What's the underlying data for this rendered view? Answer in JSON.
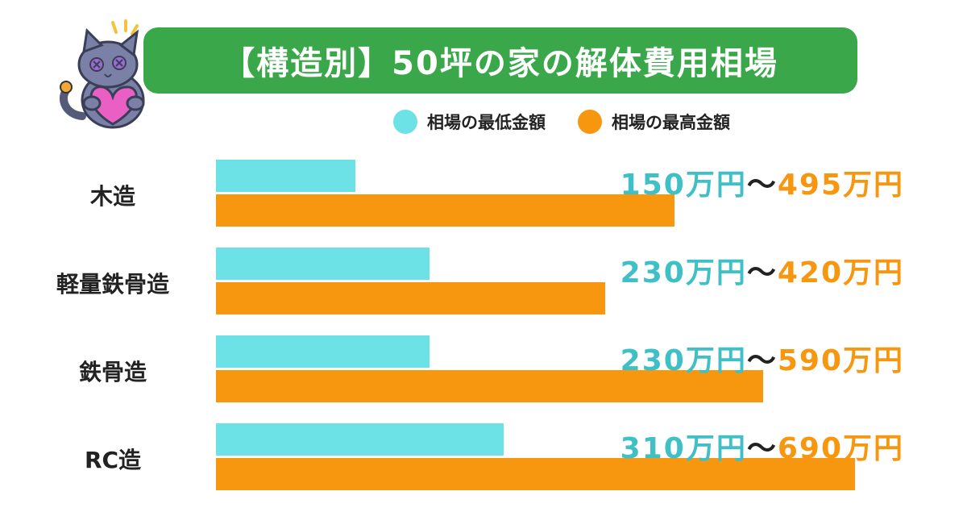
{
  "title": "【構造別】50坪の家の解体費用相場",
  "legend": {
    "min": {
      "label": "相場の最低金額",
      "color": "#6ce1e6"
    },
    "max": {
      "label": "相場の最高金額",
      "color": "#f7960f"
    }
  },
  "range_separator": "〜",
  "value_unit": "万円",
  "chart_data": {
    "type": "bar",
    "orientation": "horizontal",
    "title": "【構造別】50坪の家の解体費用相場",
    "categories": [
      "木造",
      "軽量鉄骨造",
      "鉄骨造",
      "RC造"
    ],
    "series": [
      {
        "name": "相場の最低金額",
        "values": [
          150,
          230,
          230,
          310
        ],
        "color": "#6ce1e6"
      },
      {
        "name": "相場の最高金額",
        "values": [
          495,
          420,
          590,
          690
        ],
        "color": "#f7960f"
      }
    ],
    "value_labels": {
      "min": [
        "150万円",
        "230万円",
        "230万円",
        "310万円"
      ],
      "max": [
        "495万円",
        "420万円",
        "590万円",
        "690万円"
      ]
    },
    "legend_position": "top-right",
    "grid": false
  }
}
